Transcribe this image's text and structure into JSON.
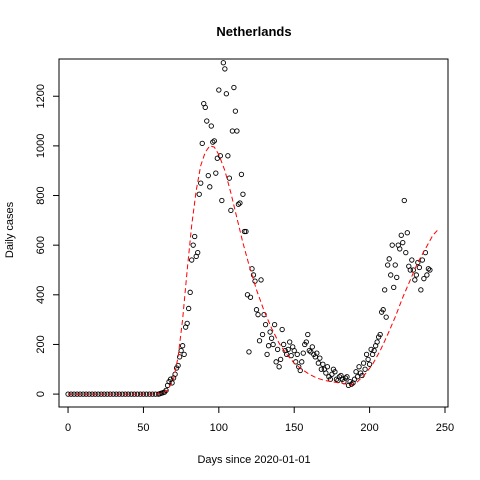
{
  "chart_data": {
    "type": "scatter",
    "title": "Netherlands",
    "xlabel": "Days since 2020-01-01",
    "ylabel": "Daily cases",
    "xlim": [
      -6,
      252
    ],
    "ylim": [
      -52,
      1350
    ],
    "x_ticks": [
      0,
      50,
      100,
      150,
      200,
      250
    ],
    "y_ticks": [
      0,
      200,
      400,
      600,
      800,
      1000,
      1200
    ],
    "grid": false,
    "legend": "none",
    "series": [
      {
        "kind": "points",
        "marker": "open-circle",
        "color": "#000000",
        "points": [
          [
            0,
            0
          ],
          [
            2,
            0
          ],
          [
            4,
            0
          ],
          [
            6,
            0
          ],
          [
            8,
            0
          ],
          [
            10,
            0
          ],
          [
            12,
            0
          ],
          [
            14,
            0
          ],
          [
            16,
            0
          ],
          [
            18,
            0
          ],
          [
            20,
            0
          ],
          [
            22,
            0
          ],
          [
            24,
            0
          ],
          [
            26,
            0
          ],
          [
            28,
            0
          ],
          [
            30,
            0
          ],
          [
            32,
            0
          ],
          [
            34,
            0
          ],
          [
            36,
            0
          ],
          [
            38,
            0
          ],
          [
            40,
            0
          ],
          [
            42,
            0
          ],
          [
            44,
            0
          ],
          [
            46,
            0
          ],
          [
            48,
            0
          ],
          [
            50,
            0
          ],
          [
            52,
            0
          ],
          [
            54,
            0
          ],
          [
            56,
            0
          ],
          [
            58,
            0
          ],
          [
            60,
            0
          ],
          [
            61,
            2
          ],
          [
            62,
            4
          ],
          [
            63,
            6
          ],
          [
            64,
            8
          ],
          [
            65,
            15
          ],
          [
            66,
            35
          ],
          [
            67,
            50
          ],
          [
            68,
            60
          ],
          [
            69,
            45
          ],
          [
            70,
            65
          ],
          [
            71,
            80
          ],
          [
            72,
            105
          ],
          [
            73,
            115
          ],
          [
            74,
            150
          ],
          [
            75,
            175
          ],
          [
            76,
            195
          ],
          [
            77,
            160
          ],
          [
            78,
            270
          ],
          [
            79,
            285
          ],
          [
            80,
            345
          ],
          [
            81,
            410
          ],
          [
            82,
            540
          ],
          [
            83,
            600
          ],
          [
            84,
            635
          ],
          [
            85,
            555
          ],
          [
            86,
            570
          ],
          [
            87,
            805
          ],
          [
            88,
            850
          ],
          [
            89,
            1010
          ],
          [
            90,
            1170
          ],
          [
            91,
            1155
          ],
          [
            92,
            1100
          ],
          [
            93,
            880
          ],
          [
            94,
            835
          ],
          [
            95,
            1080
          ],
          [
            96,
            1015
          ],
          [
            97,
            1020
          ],
          [
            98,
            890
          ],
          [
            99,
            950
          ],
          [
            100,
            1225
          ],
          [
            101,
            960
          ],
          [
            102,
            780
          ],
          [
            103,
            1335
          ],
          [
            104,
            1310
          ],
          [
            105,
            1210
          ],
          [
            106,
            960
          ],
          [
            107,
            870
          ],
          [
            108,
            740
          ],
          [
            109,
            1060
          ],
          [
            110,
            1235
          ],
          [
            111,
            1140
          ],
          [
            112,
            1060
          ],
          [
            113,
            765
          ],
          [
            114,
            770
          ],
          [
            115,
            885
          ],
          [
            116,
            805
          ],
          [
            117,
            655
          ],
          [
            118,
            655
          ],
          [
            119,
            400
          ],
          [
            120,
            170
          ],
          [
            121,
            390
          ],
          [
            122,
            505
          ],
          [
            123,
            480
          ],
          [
            124,
            455
          ],
          [
            125,
            340
          ],
          [
            126,
            320
          ],
          [
            127,
            215
          ],
          [
            128,
            460
          ],
          [
            129,
            240
          ],
          [
            130,
            320
          ],
          [
            131,
            280
          ],
          [
            132,
            160
          ],
          [
            133,
            195
          ],
          [
            134,
            250
          ],
          [
            135,
            225
          ],
          [
            136,
            200
          ],
          [
            137,
            280
          ],
          [
            138,
            130
          ],
          [
            139,
            180
          ],
          [
            140,
            110
          ],
          [
            141,
            140
          ],
          [
            142,
            260
          ],
          [
            143,
            200
          ],
          [
            144,
            175
          ],
          [
            145,
            160
          ],
          [
            146,
            180
          ],
          [
            147,
            210
          ],
          [
            148,
            155
          ],
          [
            149,
            190
          ],
          [
            150,
            175
          ],
          [
            151,
            130
          ],
          [
            152,
            160
          ],
          [
            153,
            110
          ],
          [
            154,
            95
          ],
          [
            155,
            130
          ],
          [
            156,
            165
          ],
          [
            157,
            200
          ],
          [
            158,
            210
          ],
          [
            159,
            240
          ],
          [
            160,
            175
          ],
          [
            161,
            170
          ],
          [
            162,
            190
          ],
          [
            163,
            160
          ],
          [
            164,
            150
          ],
          [
            165,
            165
          ],
          [
            166,
            125
          ],
          [
            167,
            145
          ],
          [
            168,
            100
          ],
          [
            169,
            120
          ],
          [
            170,
            100
          ],
          [
            171,
            85
          ],
          [
            172,
            110
          ],
          [
            173,
            70
          ],
          [
            174,
            60
          ],
          [
            175,
            80
          ],
          [
            176,
            100
          ],
          [
            177,
            90
          ],
          [
            178,
            60
          ],
          [
            179,
            55
          ],
          [
            180,
            70
          ],
          [
            181,
            75
          ],
          [
            182,
            60
          ],
          [
            183,
            50
          ],
          [
            184,
            65
          ],
          [
            185,
            70
          ],
          [
            186,
            35
          ],
          [
            187,
            50
          ],
          [
            188,
            40
          ],
          [
            189,
            45
          ],
          [
            190,
            60
          ],
          [
            191,
            90
          ],
          [
            192,
            70
          ],
          [
            193,
            110
          ],
          [
            194,
            85
          ],
          [
            195,
            75
          ],
          [
            196,
            125
          ],
          [
            197,
            100
          ],
          [
            198,
            160
          ],
          [
            199,
            140
          ],
          [
            200,
            120
          ],
          [
            201,
            180
          ],
          [
            202,
            160
          ],
          [
            203,
            175
          ],
          [
            204,
            195
          ],
          [
            205,
            210
          ],
          [
            206,
            230
          ],
          [
            207,
            240
          ],
          [
            208,
            330
          ],
          [
            209,
            340
          ],
          [
            210,
            420
          ],
          [
            211,
            310
          ],
          [
            212,
            520
          ],
          [
            213,
            545
          ],
          [
            214,
            480
          ],
          [
            215,
            600
          ],
          [
            216,
            430
          ],
          [
            217,
            520
          ],
          [
            218,
            470
          ],
          [
            219,
            600
          ],
          [
            220,
            585
          ],
          [
            221,
            640
          ],
          [
            222,
            610
          ],
          [
            223,
            780
          ],
          [
            224,
            570
          ],
          [
            225,
            650
          ],
          [
            226,
            515
          ],
          [
            227,
            500
          ],
          [
            228,
            540
          ],
          [
            229,
            500
          ],
          [
            230,
            460
          ],
          [
            231,
            480
          ],
          [
            232,
            530
          ],
          [
            233,
            510
          ],
          [
            234,
            420
          ],
          [
            235,
            540
          ],
          [
            236,
            465
          ],
          [
            237,
            570
          ],
          [
            238,
            480
          ],
          [
            239,
            505
          ],
          [
            240,
            500
          ]
        ]
      },
      {
        "kind": "fitted-curve",
        "line_style": "dashed",
        "color": "#ff0000",
        "points": [
          [
            0,
            0
          ],
          [
            55,
            0
          ],
          [
            62,
            2
          ],
          [
            66,
            15
          ],
          [
            70,
            60
          ],
          [
            73,
            150
          ],
          [
            76,
            300
          ],
          [
            79,
            500
          ],
          [
            82,
            680
          ],
          [
            85,
            820
          ],
          [
            88,
            920
          ],
          [
            91,
            975
          ],
          [
            94,
            1000
          ],
          [
            97,
            995
          ],
          [
            100,
            965
          ],
          [
            104,
            900
          ],
          [
            108,
            810
          ],
          [
            112,
            710
          ],
          [
            116,
            610
          ],
          [
            120,
            520
          ],
          [
            125,
            420
          ],
          [
            130,
            335
          ],
          [
            135,
            265
          ],
          [
            140,
            205
          ],
          [
            145,
            160
          ],
          [
            150,
            125
          ],
          [
            155,
            100
          ],
          [
            160,
            80
          ],
          [
            165,
            65
          ],
          [
            170,
            55
          ],
          [
            175,
            50
          ],
          [
            180,
            45
          ],
          [
            185,
            40
          ],
          [
            188,
            38
          ],
          [
            192,
            50
          ],
          [
            197,
            80
          ],
          [
            202,
            120
          ],
          [
            207,
            175
          ],
          [
            212,
            240
          ],
          [
            217,
            310
          ],
          [
            222,
            390
          ],
          [
            227,
            460
          ],
          [
            232,
            530
          ],
          [
            237,
            585
          ],
          [
            242,
            640
          ],
          [
            245,
            660
          ]
        ]
      }
    ]
  }
}
